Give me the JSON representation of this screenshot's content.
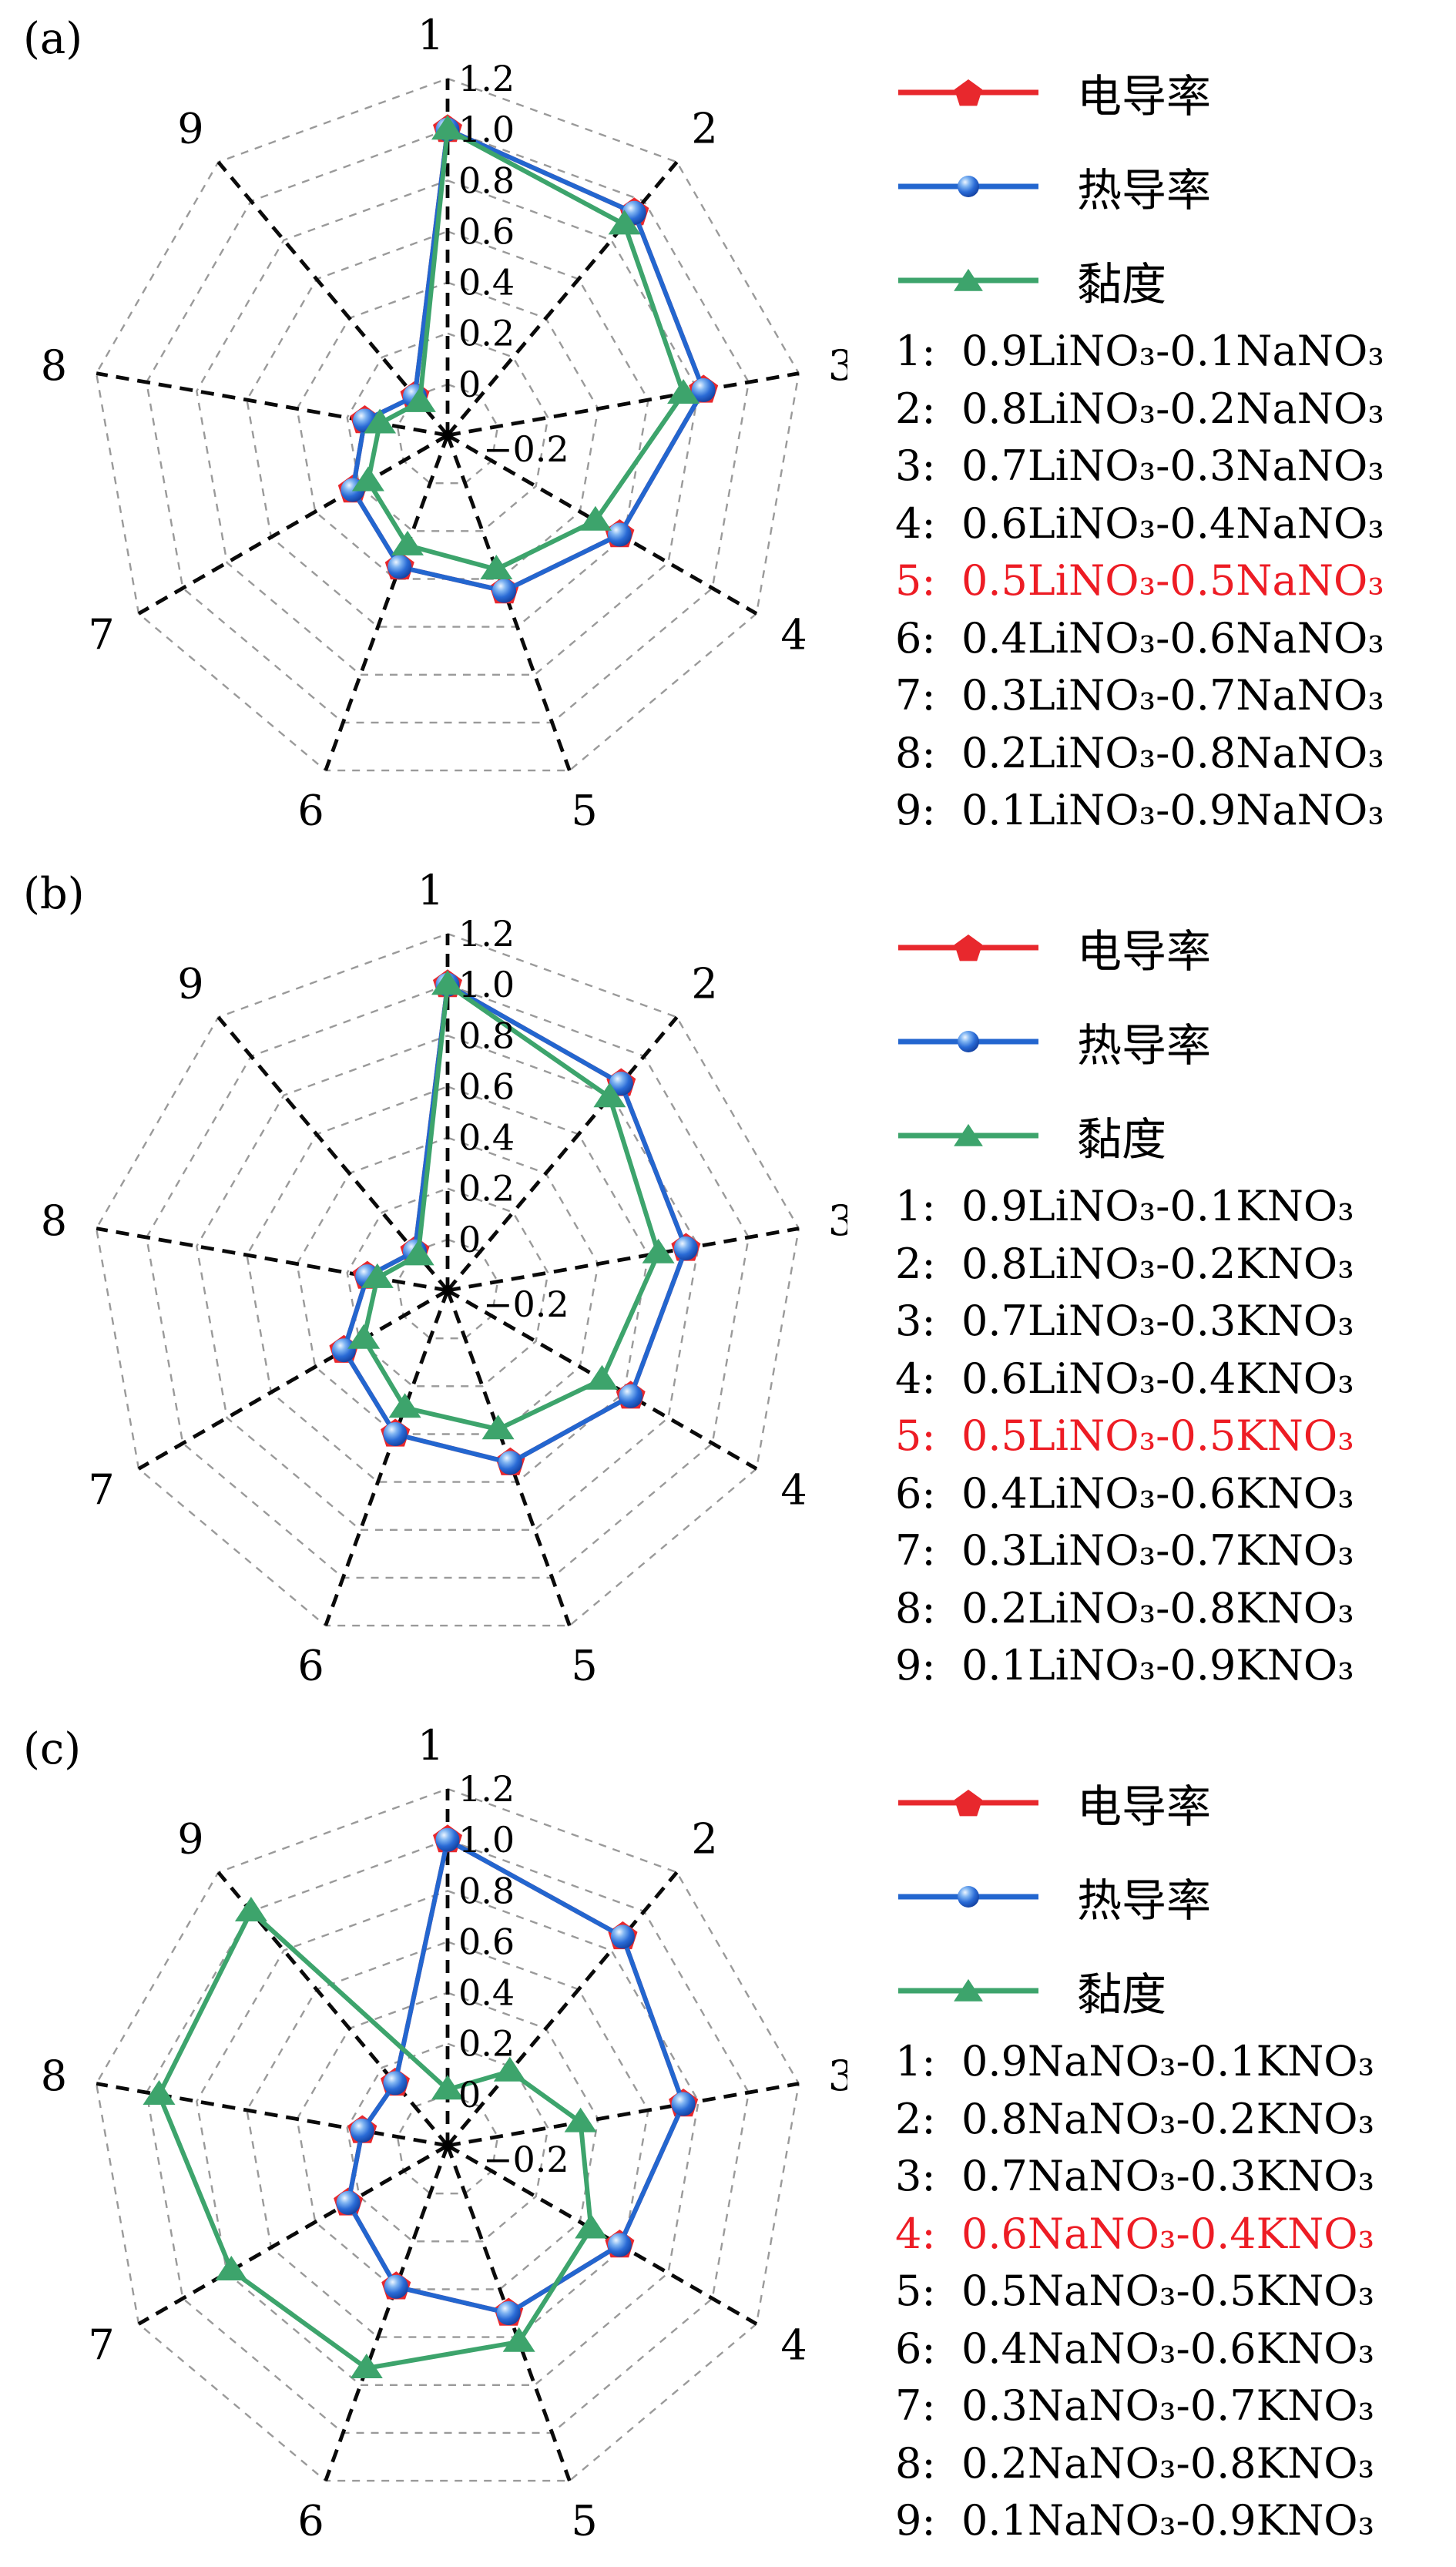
{
  "colors": {
    "red": "#e8282d",
    "blue": "#2366cf",
    "blue_deep": "#123f9e",
    "green": "#3da46c",
    "grid": "#9a9a9a",
    "spoke": "#0a0a0a",
    "highlight": "#ed1c24",
    "background": "#ffffff"
  },
  "legend_marker_names": [
    "pentagon-marker-icon",
    "circle-marker-icon",
    "triangle-marker-icon"
  ],
  "panels": [
    {
      "label": "(a)",
      "chart_data": {
        "type": "radar",
        "title": "",
        "categories": [
          "1",
          "2",
          "3",
          "4",
          "5",
          "6",
          "7",
          "8",
          "9"
        ],
        "rmin": -0.2,
        "rmax": 1.2,
        "rtick_labels": [
          "1.2",
          "1.0",
          "0.8",
          "0.6",
          "0.4",
          "0.2",
          "0",
          "−0.2"
        ],
        "rtick_values": [
          1.2,
          1.0,
          0.8,
          0.6,
          0.4,
          0.2,
          0,
          -0.2
        ],
        "grid": "polygon-dashed",
        "legend_position": "right",
        "series": [
          {
            "name": "电导率",
            "marker": "pentagon",
            "color": "#e8282d",
            "values": [
              1.0,
              0.94,
              0.82,
              0.58,
              0.45,
              0.35,
              0.23,
              0.13,
              0.0
            ]
          },
          {
            "name": "热导率",
            "marker": "circle",
            "color": "#2366cf",
            "values": [
              1.0,
              0.94,
              0.82,
              0.58,
              0.45,
              0.35,
              0.23,
              0.13,
              0.0
            ]
          },
          {
            "name": "黏度",
            "marker": "triangle",
            "color": "#3da46c",
            "values": [
              1.0,
              0.88,
              0.74,
              0.47,
              0.36,
              0.26,
              0.16,
              0.07,
              -0.03
            ]
          }
        ]
      },
      "compositions": [
        {
          "index": "1:",
          "formula": "0.9LiNO₃-0.1NaNO₃",
          "highlight": false
        },
        {
          "index": "2:",
          "formula": "0.8LiNO₃-0.2NaNO₃",
          "highlight": false
        },
        {
          "index": "3:",
          "formula": "0.7LiNO₃-0.3NaNO₃",
          "highlight": false
        },
        {
          "index": "4:",
          "formula": "0.6LiNO₃-0.4NaNO₃",
          "highlight": false
        },
        {
          "index": "5:",
          "formula": "0.5LiNO₃-0.5NaNO₃",
          "highlight": true
        },
        {
          "index": "6:",
          "formula": "0.4LiNO₃-0.6NaNO₃",
          "highlight": false
        },
        {
          "index": "7:",
          "formula": "0.3LiNO₃-0.7NaNO₃",
          "highlight": false
        },
        {
          "index": "8:",
          "formula": "0.2LiNO₃-0.8NaNO₃",
          "highlight": false
        },
        {
          "index": "9:",
          "formula": "0.1LiNO₃-0.9NaNO₃",
          "highlight": false
        }
      ]
    },
    {
      "label": "(b)",
      "chart_data": {
        "type": "radar",
        "title": "",
        "categories": [
          "1",
          "2",
          "3",
          "4",
          "5",
          "6",
          "7",
          "8",
          "9"
        ],
        "rmin": -0.2,
        "rmax": 1.2,
        "rtick_labels": [
          "1.2",
          "1.0",
          "0.8",
          "0.6",
          "0.4",
          "0.2",
          "0",
          "−0.2"
        ],
        "rtick_values": [
          1.2,
          1.0,
          0.8,
          0.6,
          0.4,
          0.2,
          0,
          -0.2
        ],
        "grid": "polygon-dashed",
        "legend_position": "right",
        "series": [
          {
            "name": "电导率",
            "marker": "pentagon",
            "color": "#e8282d",
            "values": [
              1.0,
              0.86,
              0.75,
              0.63,
              0.52,
              0.4,
              0.27,
              0.12,
              0.0
            ]
          },
          {
            "name": "热导率",
            "marker": "circle",
            "color": "#2366cf",
            "values": [
              1.0,
              0.86,
              0.75,
              0.63,
              0.52,
              0.4,
              0.27,
              0.12,
              0.0
            ]
          },
          {
            "name": "黏度",
            "marker": "triangle",
            "color": "#3da46c",
            "values": [
              1.0,
              0.79,
              0.64,
              0.5,
              0.38,
              0.29,
              0.18,
              0.08,
              -0.02
            ]
          }
        ]
      },
      "compositions": [
        {
          "index": "1:",
          "formula": "0.9LiNO₃-0.1KNO₃",
          "highlight": false
        },
        {
          "index": "2:",
          "formula": "0.8LiNO₃-0.2KNO₃",
          "highlight": false
        },
        {
          "index": "3:",
          "formula": "0.7LiNO₃-0.3KNO₃",
          "highlight": false
        },
        {
          "index": "4:",
          "formula": "0.6LiNO₃-0.4KNO₃",
          "highlight": false
        },
        {
          "index": "5:",
          "formula": "0.5LiNO₃-0.5KNO₃",
          "highlight": true
        },
        {
          "index": "6:",
          "formula": "0.4LiNO₃-0.6KNO₃",
          "highlight": false
        },
        {
          "index": "7:",
          "formula": "0.3LiNO₃-0.7KNO₃",
          "highlight": false
        },
        {
          "index": "8:",
          "formula": "0.2LiNO₃-0.8KNO₃",
          "highlight": false
        },
        {
          "index": "9:",
          "formula": "0.1LiNO₃-0.9KNO₃",
          "highlight": false
        }
      ]
    },
    {
      "label": "(c)",
      "chart_data": {
        "type": "radar",
        "title": "",
        "categories": [
          "1",
          "2",
          "3",
          "4",
          "5",
          "6",
          "7",
          "8",
          "9"
        ],
        "rmin": -0.2,
        "rmax": 1.2,
        "rtick_labels": [
          "1.2",
          "1.0",
          "0.8",
          "0.6",
          "0.4",
          "0.2",
          "0",
          "−0.2"
        ],
        "rtick_values": [
          1.2,
          1.0,
          0.8,
          0.6,
          0.4,
          0.2,
          0,
          -0.2
        ],
        "grid": "polygon-dashed",
        "legend_position": "right",
        "series": [
          {
            "name": "电导率",
            "marker": "pentagon",
            "color": "#e8282d",
            "values": [
              1.0,
              0.87,
              0.74,
              0.58,
              0.5,
              0.39,
              0.25,
              0.14,
              0.12
            ]
          },
          {
            "name": "热导率",
            "marker": "circle",
            "color": "#2366cf",
            "values": [
              1.0,
              0.87,
              0.74,
              0.58,
              0.5,
              0.39,
              0.25,
              0.14,
              0.12
            ]
          },
          {
            "name": "黏度",
            "marker": "triangle",
            "color": "#3da46c",
            "values": [
              0.02,
              0.18,
              0.33,
              0.45,
              0.62,
              0.73,
              0.78,
              0.95,
              1.0
            ]
          }
        ]
      },
      "compositions": [
        {
          "index": "1:",
          "formula": "0.9NaNO₃-0.1KNO₃",
          "highlight": false
        },
        {
          "index": "2:",
          "formula": "0.8NaNO₃-0.2KNO₃",
          "highlight": false
        },
        {
          "index": "3:",
          "formula": "0.7NaNO₃-0.3KNO₃",
          "highlight": false
        },
        {
          "index": "4:",
          "formula": "0.6NaNO₃-0.4KNO₃",
          "highlight": true
        },
        {
          "index": "5:",
          "formula": "0.5NaNO₃-0.5KNO₃",
          "highlight": false
        },
        {
          "index": "6:",
          "formula": "0.4NaNO₃-0.6KNO₃",
          "highlight": false
        },
        {
          "index": "7:",
          "formula": "0.3NaNO₃-0.7KNO₃",
          "highlight": false
        },
        {
          "index": "8:",
          "formula": "0.2NaNO₃-0.8KNO₃",
          "highlight": false
        },
        {
          "index": "9:",
          "formula": "0.1NaNO₃-0.9KNO₃",
          "highlight": false
        }
      ]
    }
  ]
}
